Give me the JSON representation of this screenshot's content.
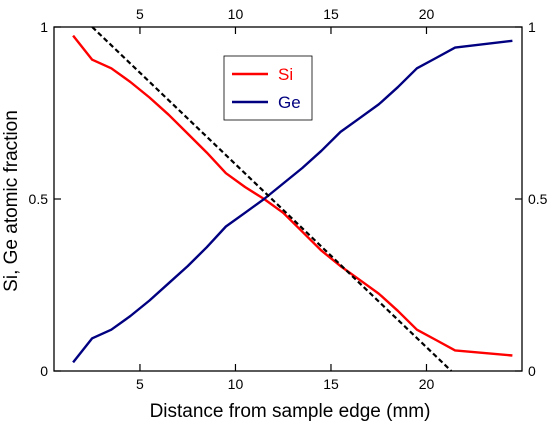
{
  "chart_data": {
    "type": "line",
    "xlabel": "Distance from sample edge (mm)",
    "ylabel": "Si, Ge atomic fraction",
    "xlim": [
      0.5,
      25
    ],
    "ylim": [
      0,
      1
    ],
    "x_ticks": [
      5,
      10,
      15,
      20
    ],
    "x_tick_labels": [
      "5",
      "10",
      "15",
      "20"
    ],
    "y_ticks": [
      0,
      0.5,
      1
    ],
    "y_tick_labels": [
      "0",
      "0.5",
      "1"
    ],
    "mirror_axes": true,
    "grid": false,
    "legend_position": "top-center",
    "series": [
      {
        "name": "Si",
        "color": "#ff0000",
        "style": "solid",
        "x": [
          1.5,
          2.5,
          3.5,
          4.5,
          5.5,
          6.5,
          7.5,
          8.5,
          9.5,
          10.5,
          11.5,
          12.5,
          13.5,
          14.5,
          15.5,
          16.5,
          17.5,
          18.5,
          19.5,
          20.5,
          21.5,
          24.5
        ],
        "y": [
          0.975,
          0.905,
          0.88,
          0.84,
          0.795,
          0.745,
          0.69,
          0.635,
          0.575,
          0.535,
          0.5,
          0.46,
          0.405,
          0.35,
          0.305,
          0.265,
          0.225,
          0.175,
          0.12,
          0.09,
          0.06,
          0.045
        ]
      },
      {
        "name": "Ge",
        "color": "#000080",
        "style": "solid",
        "x": [
          1.5,
          2.5,
          3.5,
          4.5,
          5.5,
          6.5,
          7.5,
          8.5,
          9.5,
          10.5,
          11.5,
          12.5,
          13.5,
          14.5,
          15.5,
          16.5,
          17.5,
          18.5,
          19.5,
          20.5,
          21.5,
          24.5
        ],
        "y": [
          0.025,
          0.095,
          0.12,
          0.16,
          0.205,
          0.255,
          0.305,
          0.36,
          0.42,
          0.46,
          0.5,
          0.545,
          0.59,
          0.64,
          0.695,
          0.735,
          0.775,
          0.825,
          0.88,
          0.91,
          0.94,
          0.96
        ]
      },
      {
        "style": "dashed",
        "color": "#000000",
        "x": [
          2.5,
          21.3
        ],
        "y": [
          1.0,
          0.0
        ]
      }
    ]
  }
}
